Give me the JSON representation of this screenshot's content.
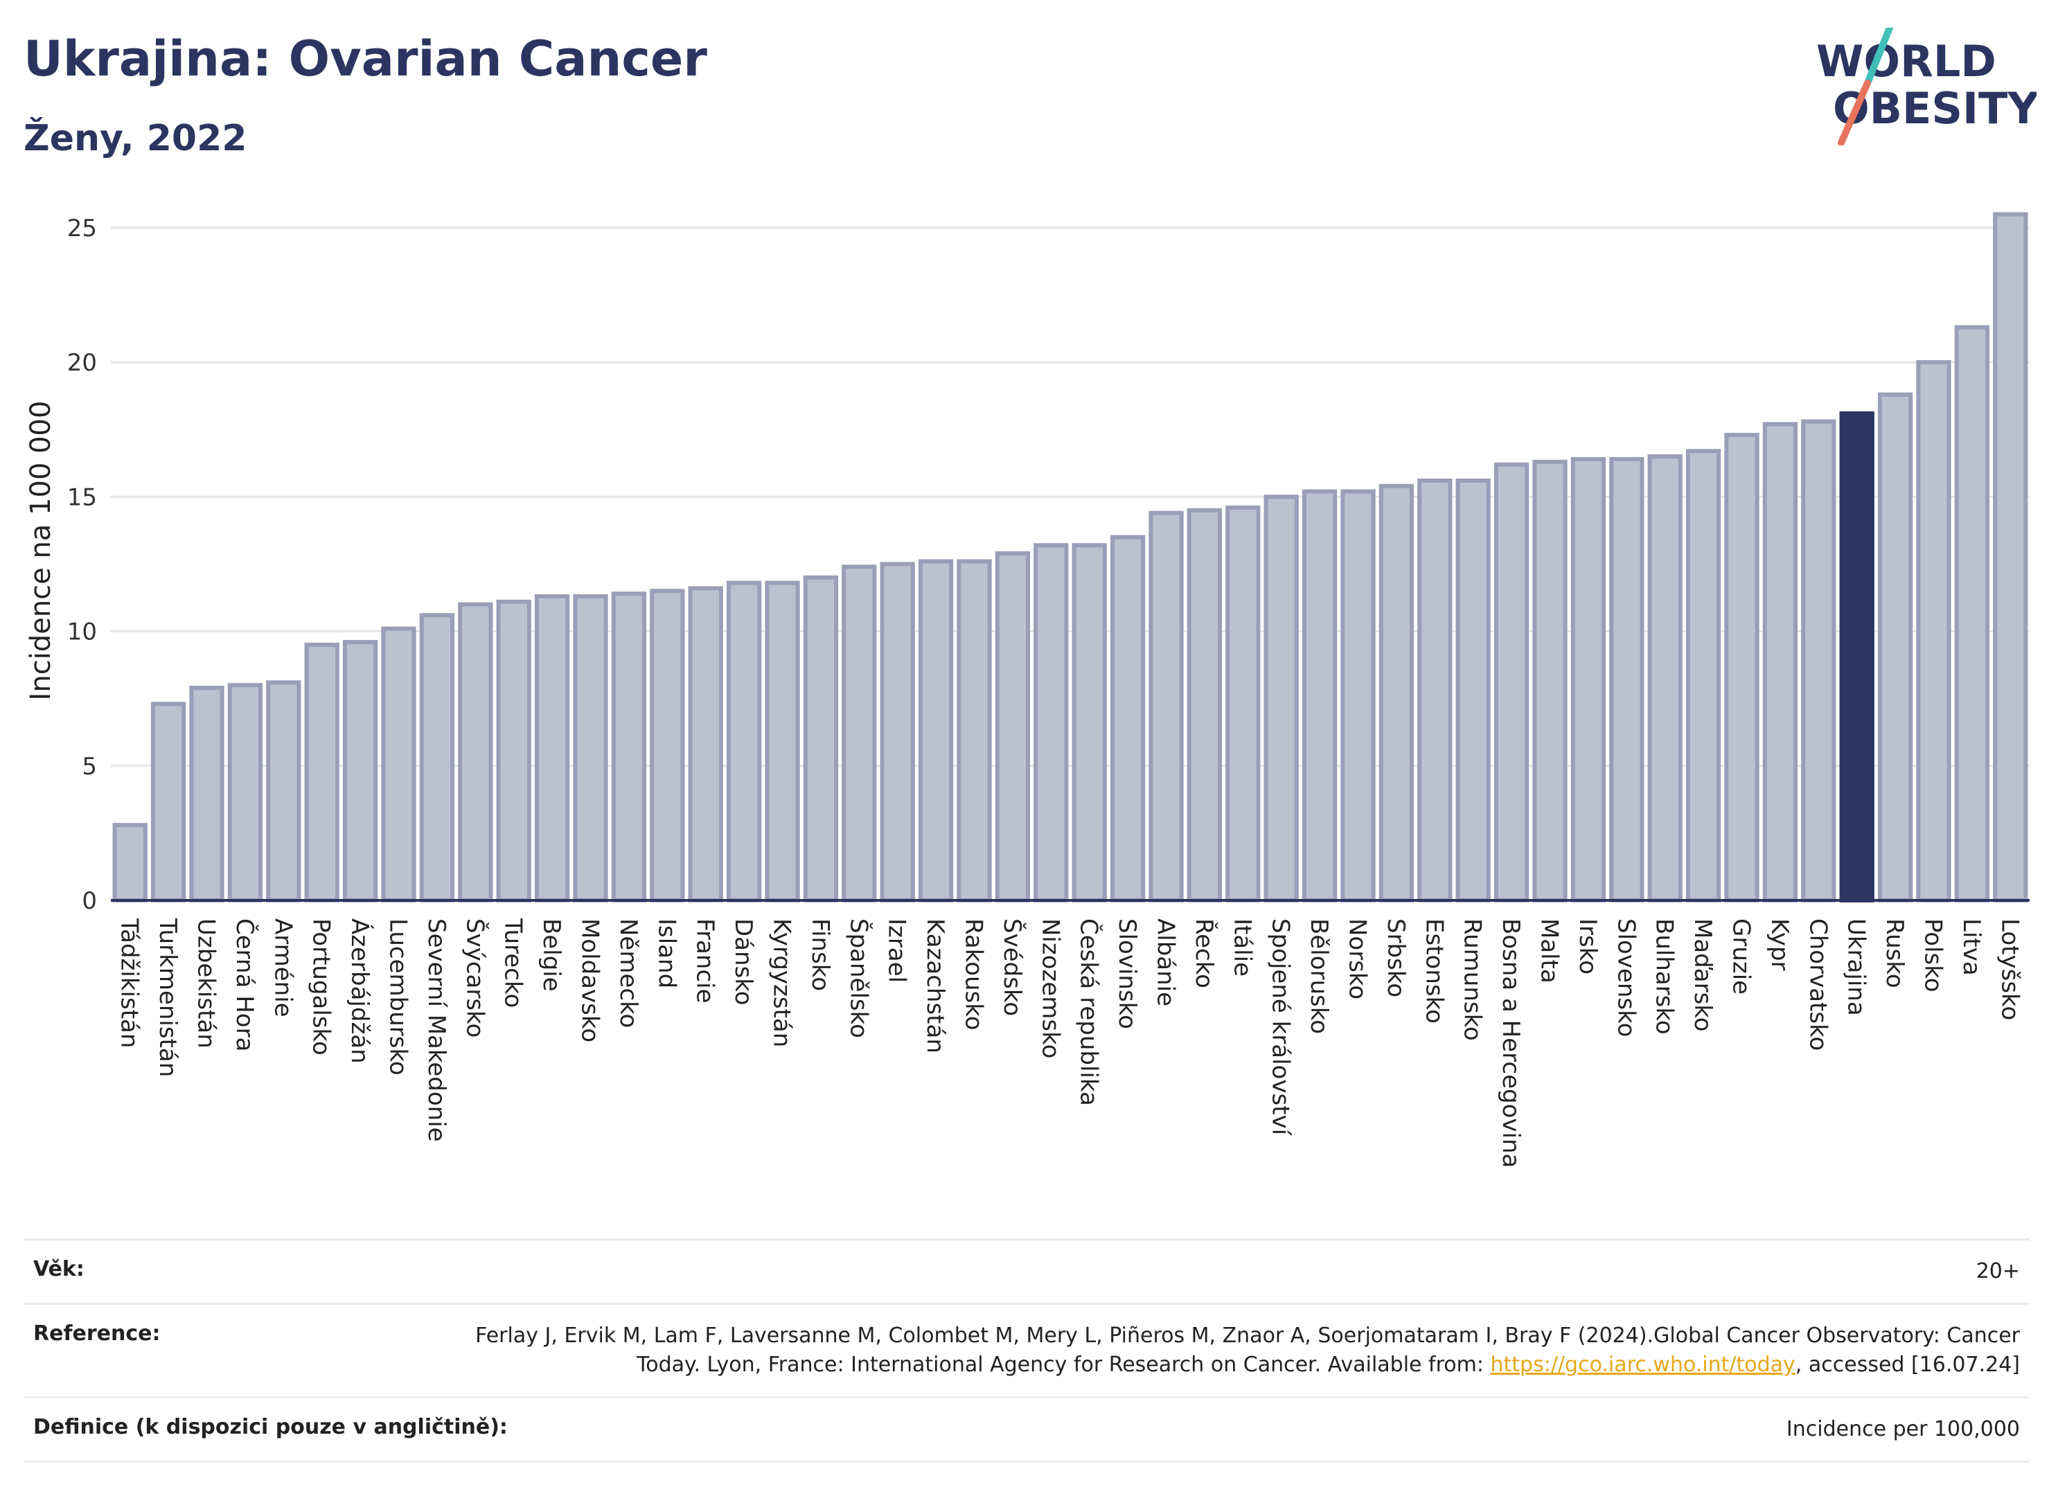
{
  "header": {
    "title": "Ukrajina: Ovarian Cancer",
    "subtitle": "Ženy, 2022",
    "logo_line1": "WORLD",
    "logo_line2": "OBESITY"
  },
  "colors": {
    "bar_fill": "#bdc0cf",
    "bar_stroke": "#9a9eb6",
    "highlight": "#2b3560",
    "title": "#2b3560",
    "logo_teal": "#3fbfb7",
    "logo_coral": "#e8735c"
  },
  "chart_data": {
    "type": "bar",
    "ylabel": "Incidence na 100 000",
    "ylim": [
      0,
      26
    ],
    "yticks": [
      0,
      5,
      10,
      15,
      20,
      25
    ],
    "grid": true,
    "highlight": "Ukrajina",
    "categories": [
      "Tádžikistán",
      "Turkmenistán",
      "Uzbekistán",
      "Černá Hora",
      "Arménie",
      "Portugalsko",
      "Ázerbájdžán",
      "Lucembursko",
      "Severní Makedonie",
      "Švýcarsko",
      "Turecko",
      "Belgie",
      "Moldavsko",
      "Německo",
      "Island",
      "Francie",
      "Dánsko",
      "Kyrgyzstán",
      "Finsko",
      "Španělsko",
      "Izrael",
      "Kazachstán",
      "Rakousko",
      "Švédsko",
      "Nizozemsko",
      "Česká republika",
      "Slovinsko",
      "Albánie",
      "Řecko",
      "Itálie",
      "Spojené království",
      "Bělorusko",
      "Norsko",
      "Srbsko",
      "Estonsko",
      "Rumunsko",
      "Bosna a Hercegovina",
      "Malta",
      "Irsko",
      "Slovensko",
      "Bulharsko",
      "Maďarsko",
      "Gruzie",
      "Kypr",
      "Chorvatsko",
      "Ukrajina",
      "Rusko",
      "Polsko",
      "Litva",
      "Lotyšsko"
    ],
    "values": [
      2.8,
      7.3,
      7.9,
      8.0,
      8.1,
      9.5,
      9.6,
      10.1,
      10.6,
      11.0,
      11.1,
      11.3,
      11.3,
      11.4,
      11.5,
      11.6,
      11.8,
      11.8,
      12.0,
      12.4,
      12.5,
      12.6,
      12.6,
      12.9,
      13.2,
      13.2,
      13.5,
      14.4,
      14.5,
      14.6,
      15.0,
      15.2,
      15.2,
      15.4,
      15.6,
      15.6,
      16.2,
      16.3,
      16.4,
      16.4,
      16.5,
      16.7,
      17.3,
      17.7,
      17.8,
      18.1,
      18.8,
      20.0,
      21.3,
      25.5
    ]
  },
  "footer": {
    "age_label": "Věk:",
    "age_value": "20+",
    "ref_label": "Reference:",
    "ref_text_1": "Ferlay J, Ervik M, Lam F, Laversanne M, Colombet M, Mery L, Piñeros M, Znaor A, Soerjomataram I, Bray F (2024).Global Cancer Observatory: Cancer Today. Lyon, France: International Agency for Research on Cancer. Available from: ",
    "ref_link": "https://gco.iarc.who.int/today",
    "ref_text_2": ", accessed [16.07.24]",
    "def_label": "Definice (k dispozici pouze v angličtině):",
    "def_value": "Incidence per 100,000"
  }
}
